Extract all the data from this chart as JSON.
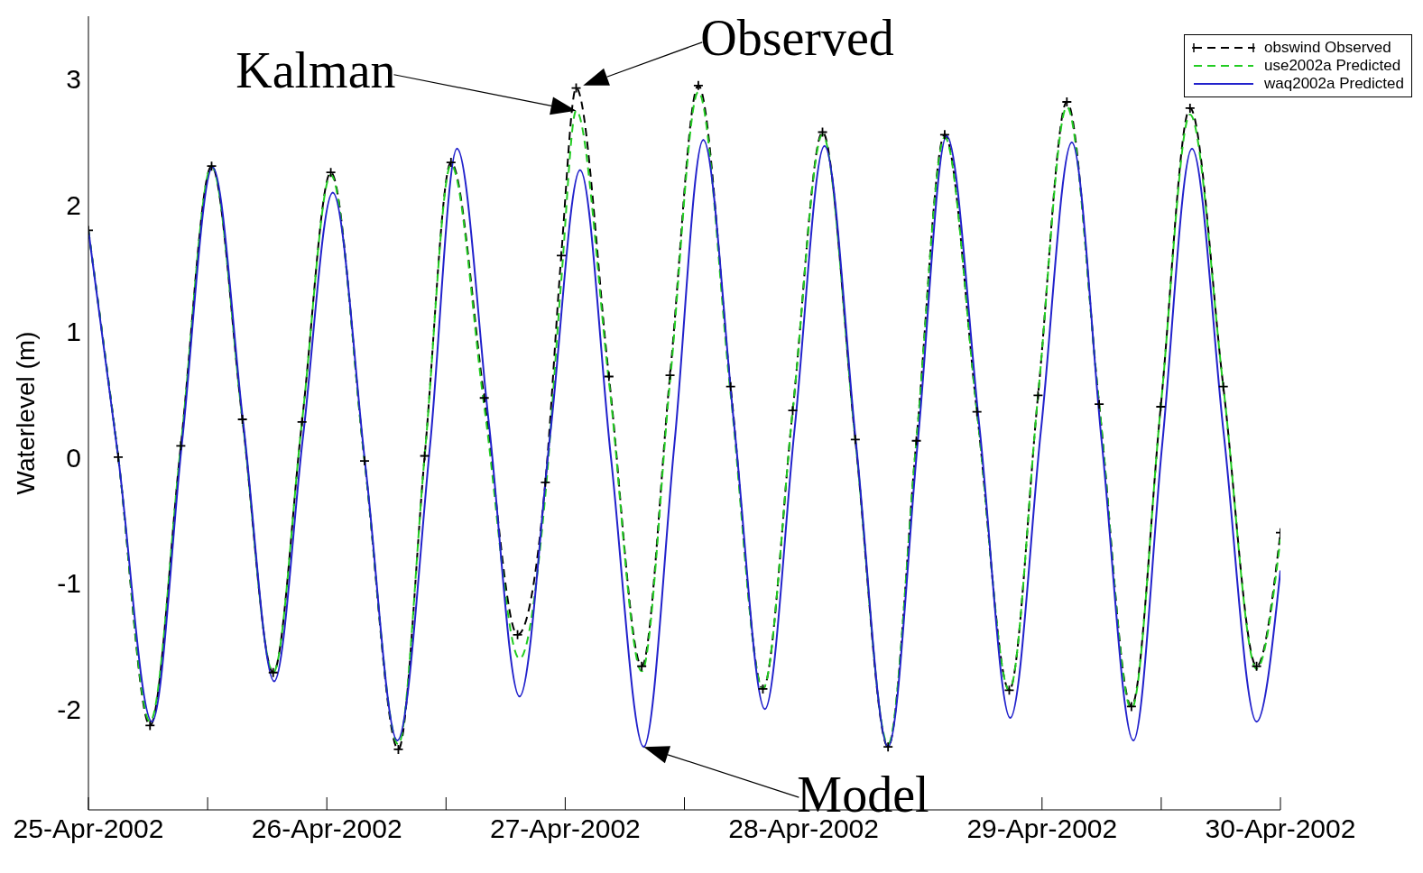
{
  "chart_data": {
    "type": "line",
    "ylabel": "Waterlevel (m)",
    "xlim": [
      "2002-04-25",
      "2002-04-30"
    ],
    "xticks": [
      {
        "value": "2002-04-25",
        "label": "25-Apr-2002"
      },
      {
        "value": "2002-04-25T12:00",
        "label": null
      },
      {
        "value": "2002-04-26",
        "label": "26-Apr-2002"
      },
      {
        "value": "2002-04-26T12:00",
        "label": null
      },
      {
        "value": "2002-04-27",
        "label": "27-Apr-2002"
      },
      {
        "value": "2002-04-27T12:00",
        "label": null
      },
      {
        "value": "2002-04-28",
        "label": "28-Apr-2002"
      },
      {
        "value": "2002-04-28T12:00",
        "label": null
      },
      {
        "value": "2002-04-29",
        "label": "29-Apr-2002"
      },
      {
        "value": "2002-04-29T12:00",
        "label": null
      },
      {
        "value": "2002-04-30",
        "label": "30-Apr-2002"
      }
    ],
    "ylim": [
      -2.8,
      3.5
    ],
    "yticks": [
      -2,
      -1,
      0,
      1,
      2,
      3
    ],
    "grid": false,
    "legend": "top right",
    "annotations": [
      {
        "text": "Observed",
        "x": "2002-04-27T01:48",
        "y": 2.95
      },
      "Kalman",
      "Model"
    ],
    "series": [
      {
        "name": "obswind Observed",
        "color": "#000000",
        "line_style": "dashed",
        "marker": "cross",
        "x": [
          "2002-04-25T00:00",
          "2002-04-25T03:00",
          "2002-04-25T06:12",
          "2002-04-25T09:18",
          "2002-04-25T12:24",
          "2002-04-25T15:30",
          "2002-04-25T18:36",
          "2002-04-25T21:30",
          "2002-04-26T00:24",
          "2002-04-26T03:48",
          "2002-04-26T07:12",
          "2002-04-26T09:51",
          "2002-04-26T12:30",
          "2002-04-26T15:51",
          "2002-04-26T19:12",
          "2002-04-26T22:00",
          "2002-04-26T23:36",
          "2002-04-27T01:06",
          "2002-04-27T04:24",
          "2002-04-27T07:42",
          "2002-04-27T10:33",
          "2002-04-27T13:24",
          "2002-04-27T16:39",
          "2002-04-27T19:54",
          "2002-04-27T22:54",
          "2002-04-28T01:54",
          "2002-04-28T05:12",
          "2002-04-28T08:30",
          "2002-04-28T11:21",
          "2002-04-28T14:12",
          "2002-04-28T17:27",
          "2002-04-28T20:42",
          "2002-04-28T23:36",
          "2002-04-29T02:30",
          "2002-04-29T05:45",
          "2002-04-29T09:00",
          "2002-04-29T11:57",
          "2002-04-29T14:54",
          "2002-04-29T18:15",
          "2002-04-29T21:36",
          "2002-04-30T00:00"
        ],
        "values": [
          1.8,
          0.0,
          -2.13,
          0.09,
          2.31,
          0.3,
          -1.71,
          0.28,
          2.26,
          -0.03,
          -2.32,
          0.01,
          2.34,
          0.47,
          -1.41,
          -0.2,
          1.6,
          2.93,
          0.64,
          -1.66,
          0.65,
          2.95,
          0.56,
          -1.84,
          0.37,
          2.58,
          0.14,
          -2.3,
          0.13,
          2.56,
          0.36,
          -1.85,
          0.49,
          2.82,
          0.42,
          -1.98,
          0.4,
          2.77,
          0.56,
          -1.66,
          -0.6
        ]
      },
      {
        "name": "use2002a Predicted",
        "color": "#22cc22",
        "line_style": "dashed",
        "marker": "none",
        "x": [
          "2002-04-25T00:00",
          "2002-04-25T03:00",
          "2002-04-25T06:12",
          "2002-04-25T09:18",
          "2002-04-25T12:24",
          "2002-04-25T15:30",
          "2002-04-25T18:36",
          "2002-04-25T21:30",
          "2002-04-26T00:24",
          "2002-04-26T03:48",
          "2002-04-26T07:12",
          "2002-04-26T09:51",
          "2002-04-26T12:30",
          "2002-04-26T15:51",
          "2002-04-26T19:24",
          "2002-04-26T22:00",
          "2002-04-26T23:36",
          "2002-04-27T01:06",
          "2002-04-27T04:24",
          "2002-04-27T07:42",
          "2002-04-27T10:33",
          "2002-04-27T13:24",
          "2002-04-27T16:39",
          "2002-04-27T19:54",
          "2002-04-27T22:54",
          "2002-04-28T01:54",
          "2002-04-28T05:12",
          "2002-04-28T08:30",
          "2002-04-28T11:21",
          "2002-04-28T14:12",
          "2002-04-28T17:27",
          "2002-04-28T20:42",
          "2002-04-28T23:36",
          "2002-04-29T02:30",
          "2002-04-29T05:45",
          "2002-04-29T09:00",
          "2002-04-29T11:57",
          "2002-04-29T14:54",
          "2002-04-29T18:15",
          "2002-04-29T21:36",
          "2002-04-30T00:00"
        ],
        "values": [
          1.8,
          0.0,
          -2.1,
          0.09,
          2.31,
          0.3,
          -1.71,
          0.28,
          2.24,
          -0.03,
          -2.28,
          0.01,
          2.32,
          0.4,
          -1.6,
          -0.3,
          1.4,
          2.75,
          0.6,
          -1.7,
          0.6,
          2.9,
          0.5,
          -1.84,
          0.37,
          2.56,
          0.14,
          -2.28,
          0.13,
          2.54,
          0.36,
          -1.85,
          0.49,
          2.78,
          0.42,
          -2.0,
          0.4,
          2.72,
          0.56,
          -1.68,
          -0.65
        ]
      },
      {
        "name": "waq2002a Predicted",
        "color": "#2222cc",
        "line_style": "solid",
        "marker": "none",
        "x": [
          "2002-04-25T00:00",
          "2002-04-25T03:00",
          "2002-04-25T06:24",
          "2002-04-25T09:24",
          "2002-04-25T12:30",
          "2002-04-25T15:36",
          "2002-04-25T18:42",
          "2002-04-25T21:36",
          "2002-04-26T00:36",
          "2002-04-26T03:54",
          "2002-04-26T07:06",
          "2002-04-26T10:24",
          "2002-04-26T13:06",
          "2002-04-26T16:18",
          "2002-04-26T19:24",
          "2002-04-26T22:30",
          "2002-04-27T01:30",
          "2002-04-27T04:36",
          "2002-04-27T07:54",
          "2002-04-27T11:00",
          "2002-04-27T13:54",
          "2002-04-27T17:00",
          "2002-04-27T20:06",
          "2002-04-27T23:06",
          "2002-04-28T02:06",
          "2002-04-28T05:18",
          "2002-04-28T08:30",
          "2002-04-28T11:30",
          "2002-04-28T14:24",
          "2002-04-28T17:42",
          "2002-04-28T20:48",
          "2002-04-28T23:54",
          "2002-04-29T03:00",
          "2002-04-29T06:00",
          "2002-04-29T09:12",
          "2002-04-29T12:06",
          "2002-04-29T15:06",
          "2002-04-29T18:18",
          "2002-04-29T21:36",
          "2002-04-30T00:00"
        ],
        "values": [
          1.8,
          0.0,
          -2.1,
          0.1,
          2.3,
          0.26,
          -1.78,
          0.16,
          2.1,
          -0.08,
          -2.25,
          0.1,
          2.45,
          0.28,
          -1.9,
          0.19,
          2.28,
          0.0,
          -2.3,
          0.11,
          2.52,
          0.26,
          -2.0,
          0.23,
          2.47,
          0.09,
          -2.3,
          0.13,
          2.55,
          0.24,
          -2.07,
          0.22,
          2.5,
          0.13,
          -2.25,
          0.1,
          2.45,
          0.18,
          -2.1,
          -0.9
        ]
      }
    ]
  }
}
